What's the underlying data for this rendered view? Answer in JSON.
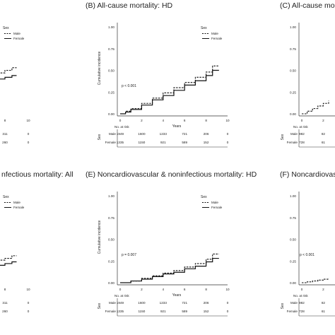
{
  "figure": {
    "titles": {
      "B": "(B) All-cause mortality: HD",
      "C": "(C) All-cause mo",
      "D": "nfectious mortality: All",
      "E": "(E) Noncardiovascular & noninfectious mortality: HD",
      "F": "(F) Noncardiovasc"
    }
  },
  "chart_data": [
    {
      "panel": "A (partial)",
      "type": "line",
      "legend": {
        "title": "Sex",
        "entries": [
          "Male",
          "Female"
        ],
        "placement": "top-right"
      },
      "xticks": [
        "8",
        "10"
      ],
      "series": [
        {
          "name": "Male",
          "style": "dashed",
          "x": [
            6.8,
            7.4,
            8.0,
            8.6,
            9.0
          ],
          "y": [
            0.45,
            0.47,
            0.5,
            0.53,
            0.53
          ]
        },
        {
          "name": "Female",
          "style": "solid",
          "x": [
            6.8,
            7.4,
            8.0,
            8.6,
            9.0
          ],
          "y": [
            0.38,
            0.4,
            0.42,
            0.44,
            0.44
          ]
        }
      ],
      "risk_table": {
        "rows": [
          {
            "label": "Male",
            "values": [
              "311",
              "0"
            ]
          },
          {
            "label": "Female",
            "values": [
              "260",
              "0"
            ]
          }
        ]
      }
    },
    {
      "panel": "B",
      "type": "line",
      "title": "(B) All-cause mortality: HD",
      "xlabel": "Years",
      "ylabel": "Cumulative incidence",
      "xlim": [
        0,
        10
      ],
      "ylim": [
        0,
        1
      ],
      "xticks": [
        "0",
        "2",
        "4",
        "6",
        "8",
        "10"
      ],
      "yticks": [
        "0.00",
        "0.25",
        "0.50",
        "0.75",
        "1.00"
      ],
      "legend": {
        "title": "Sex",
        "entries": [
          "Male",
          "Female"
        ],
        "placement": "top-right"
      },
      "annotation": "p < 0.001",
      "series": [
        {
          "name": "Male",
          "style": "dashed",
          "x": [
            0,
            0.5,
            1,
            2,
            3,
            4,
            5,
            6,
            7,
            8,
            8.6,
            9.2
          ],
          "y": [
            0,
            0.03,
            0.06,
            0.12,
            0.18,
            0.24,
            0.3,
            0.36,
            0.42,
            0.48,
            0.55,
            0.55
          ]
        },
        {
          "name": "Female",
          "style": "solid",
          "x": [
            0,
            0.5,
            1,
            2,
            3,
            4,
            5,
            6,
            7,
            8,
            8.6,
            9.2
          ],
          "y": [
            0,
            0.02,
            0.05,
            0.1,
            0.16,
            0.21,
            0.27,
            0.33,
            0.38,
            0.44,
            0.5,
            0.5
          ]
        }
      ],
      "risk_table": {
        "title": "No. at risk",
        "axis_label": "Sex",
        "rows": [
          {
            "label": "Male",
            "values": [
              "1949",
              "1600",
              "1233",
              "721",
              "206",
              "0"
            ]
          },
          {
            "label": "Female",
            "values": [
              "1335",
              "1150",
              "921",
              "589",
              "152",
              "0"
            ]
          }
        ]
      }
    },
    {
      "panel": "C (partial)",
      "type": "line",
      "xticks": [
        "0",
        "2"
      ],
      "yticks": [
        "1.00",
        "0.75",
        "0.50",
        "0.25",
        "0.00"
      ],
      "series": [
        {
          "name": "Male",
          "style": "dashed",
          "x": [
            0,
            0.5,
            1,
            1.5,
            2,
            2.5
          ],
          "y": [
            0,
            0.03,
            0.06,
            0.09,
            0.12,
            0.15
          ]
        }
      ],
      "risk_table": {
        "title": "No. at risk",
        "axis_label": "Sex",
        "rows": [
          {
            "label": "Male",
            "values": [
              "982",
              "82"
            ]
          },
          {
            "label": "Female",
            "values": [
              "728",
              "61"
            ]
          }
        ]
      }
    },
    {
      "panel": "D (partial)",
      "type": "line",
      "legend": {
        "title": "Sex",
        "entries": [
          "Male",
          "Female"
        ],
        "placement": "top-right"
      },
      "xticks": [
        "8",
        "10"
      ],
      "series": [
        {
          "name": "Male",
          "style": "dashed",
          "x": [
            6.8,
            7.4,
            8.0,
            8.6,
            9.0
          ],
          "y": [
            0.24,
            0.26,
            0.28,
            0.31,
            0.31
          ]
        },
        {
          "name": "Female",
          "style": "solid",
          "x": [
            6.8,
            7.4,
            8.0,
            8.6,
            9.0
          ],
          "y": [
            0.18,
            0.2,
            0.22,
            0.24,
            0.24
          ]
        }
      ],
      "risk_table": {
        "rows": [
          {
            "label": "Male",
            "values": [
              "311",
              "0"
            ]
          },
          {
            "label": "Female",
            "values": [
              "260",
              "0"
            ]
          }
        ]
      }
    },
    {
      "panel": "E",
      "type": "line",
      "title": "(E) Noncardiovascular & noninfectious mortality: HD",
      "xlabel": "Years",
      "ylabel": "Cumulative incidence",
      "xlim": [
        0,
        10
      ],
      "ylim": [
        0,
        1
      ],
      "xticks": [
        "0",
        "2",
        "4",
        "6",
        "8",
        "10"
      ],
      "yticks": [
        "0.00",
        "0.25",
        "0.50",
        "0.75",
        "1.00"
      ],
      "legend": {
        "title": "Sex",
        "entries": [
          "Male",
          "Female"
        ],
        "placement": "top-right"
      },
      "annotation": "p = 0.007",
      "series": [
        {
          "name": "Male",
          "style": "dashed",
          "x": [
            0,
            1,
            2,
            3,
            4,
            5,
            6,
            7,
            8,
            8.6,
            9.2
          ],
          "y": [
            0,
            0.02,
            0.05,
            0.08,
            0.11,
            0.14,
            0.18,
            0.22,
            0.27,
            0.33,
            0.33
          ]
        },
        {
          "name": "Female",
          "style": "solid",
          "x": [
            0,
            1,
            2,
            3,
            4,
            5,
            6,
            7,
            8,
            8.6,
            9.2
          ],
          "y": [
            0,
            0.02,
            0.04,
            0.07,
            0.1,
            0.12,
            0.16,
            0.19,
            0.24,
            0.28,
            0.28
          ]
        }
      ],
      "risk_table": {
        "title": "No. at risk",
        "axis_label": "Sex",
        "rows": [
          {
            "label": "Male",
            "values": [
              "1949",
              "1600",
              "1233",
              "721",
              "206",
              "0"
            ]
          },
          {
            "label": "Female",
            "values": [
              "1335",
              "1150",
              "921",
              "589",
              "152",
              "0"
            ]
          }
        ]
      }
    },
    {
      "panel": "F (partial)",
      "type": "line",
      "annotation": "p < 0.001",
      "xticks": [
        "0",
        "2"
      ],
      "yticks": [
        "1.00",
        "0.75",
        "0.50",
        "0.25",
        "0.00"
      ],
      "series": [
        {
          "name": "Male",
          "style": "dashed",
          "x": [
            0,
            0.5,
            1,
            1.5,
            2,
            2.5
          ],
          "y": [
            0,
            0.01,
            0.02,
            0.03,
            0.04,
            0.05
          ]
        }
      ],
      "risk_table": {
        "title": "No. at risk",
        "axis_label": "Sex",
        "rows": [
          {
            "label": "Male",
            "values": [
              "982",
              "82"
            ]
          },
          {
            "label": "Female",
            "values": [
              "728",
              "61"
            ]
          }
        ]
      }
    }
  ]
}
